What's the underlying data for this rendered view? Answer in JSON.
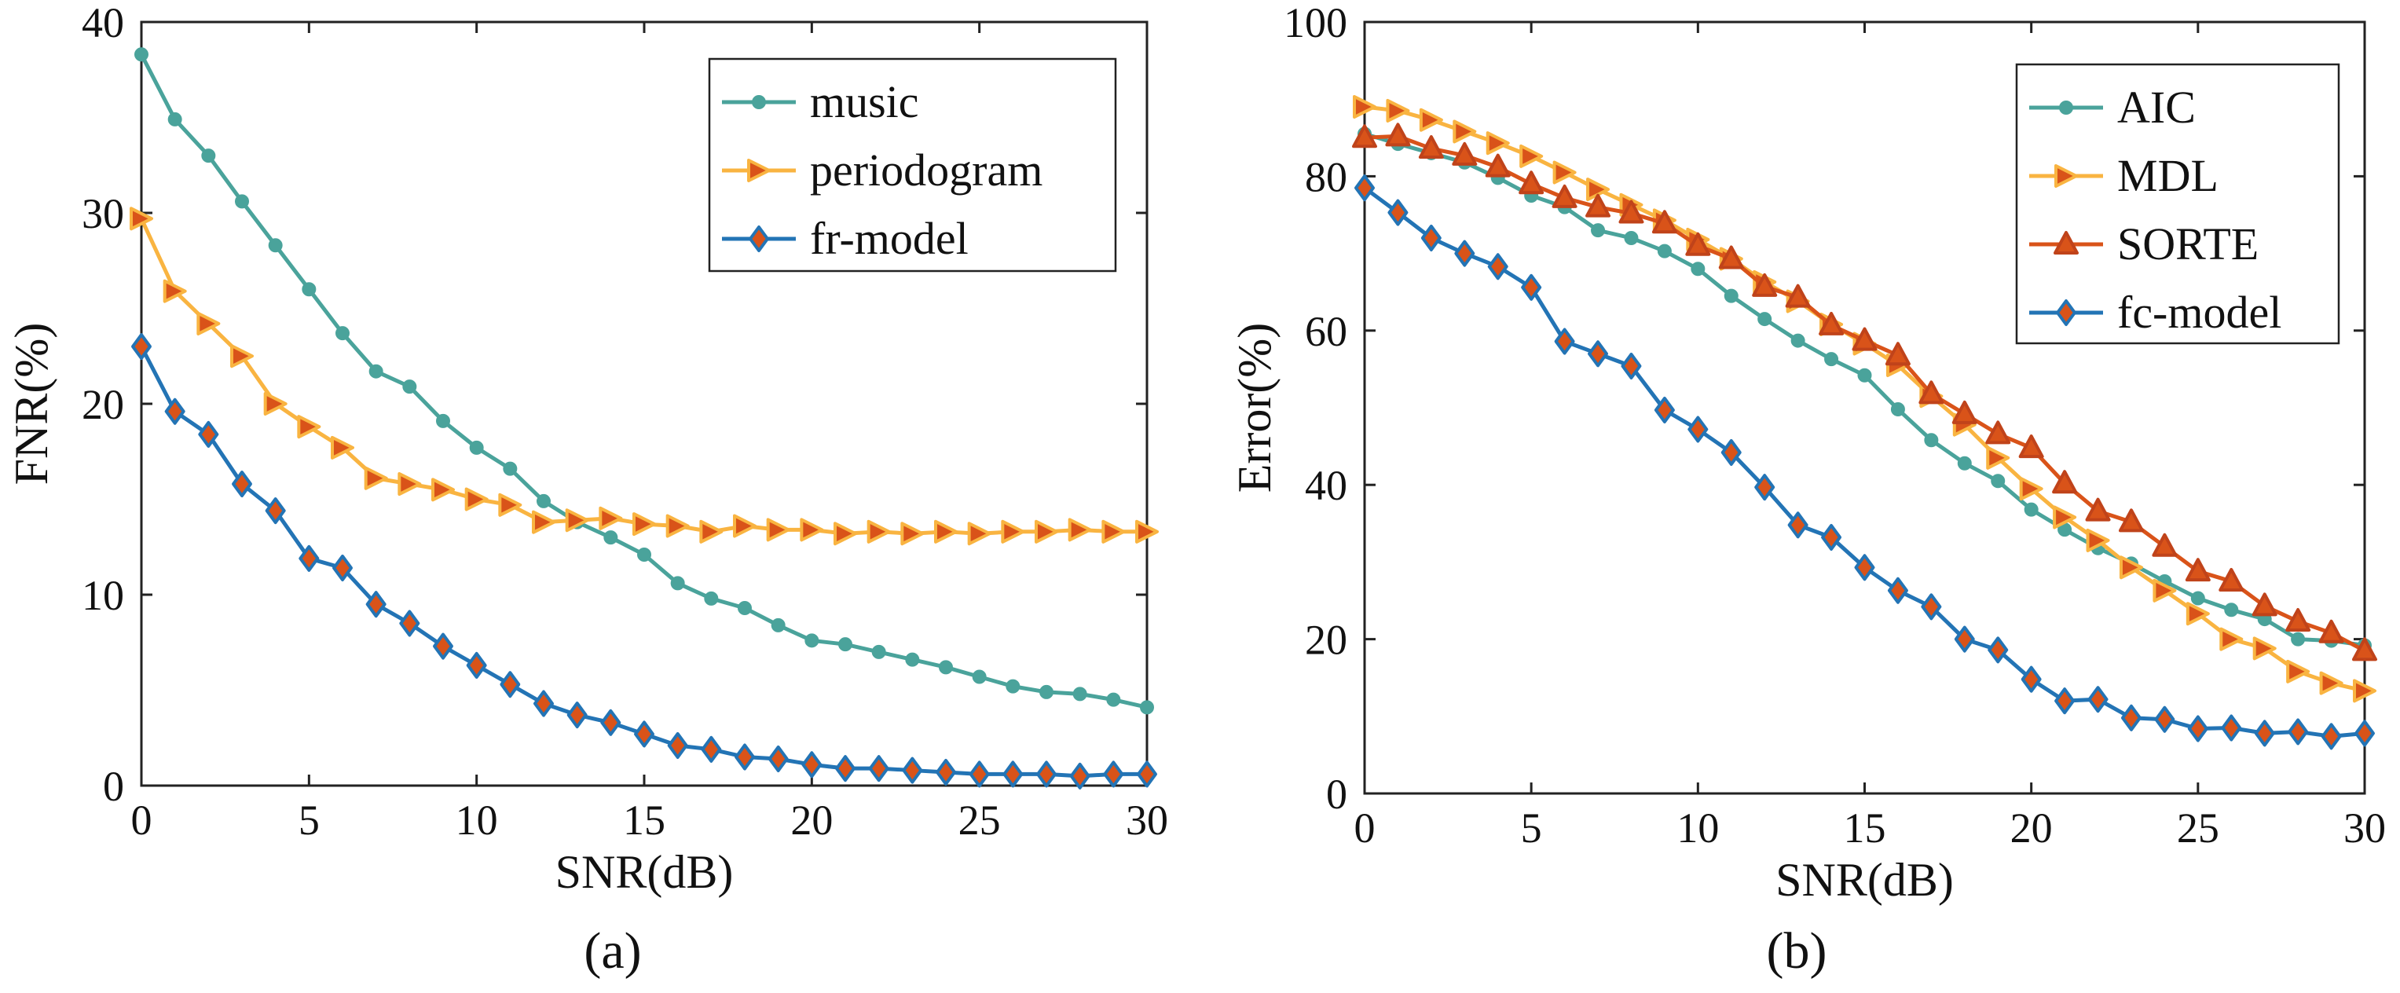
{
  "chart_data": [
    {
      "id": "a",
      "type": "line",
      "caption": "(a)",
      "xlabel": "SNR(dB)",
      "ylabel": "FNR(%)",
      "xlim": [
        0,
        30
      ],
      "ylim": [
        0,
        40
      ],
      "xticks": [
        0,
        5,
        10,
        15,
        20,
        25,
        30
      ],
      "yticks": [
        0,
        10,
        20,
        30,
        40
      ],
      "legend_position": "top-right",
      "x": [
        0,
        1,
        2,
        3,
        4,
        5,
        6,
        7,
        8,
        9,
        10,
        11,
        12,
        13,
        14,
        15,
        16,
        17,
        18,
        19,
        20,
        21,
        22,
        23,
        24,
        25,
        26,
        27,
        28,
        29,
        30
      ],
      "series": [
        {
          "name": "music",
          "color": "#4aa39b",
          "marker": "circle",
          "values": [
            38.3,
            34.9,
            33.0,
            30.6,
            28.3,
            26.0,
            23.7,
            21.7,
            20.9,
            19.1,
            17.7,
            16.6,
            14.9,
            13.8,
            13.0,
            12.1,
            10.6,
            9.8,
            9.3,
            8.4,
            7.6,
            7.4,
            7.0,
            6.6,
            6.2,
            5.7,
            5.2,
            4.9,
            4.8,
            4.5,
            4.1
          ]
        },
        {
          "name": "periodogram",
          "color": "#f9b441",
          "marker": "triangle-right",
          "values": [
            29.7,
            25.9,
            24.2,
            22.5,
            20.0,
            18.8,
            17.7,
            16.1,
            15.8,
            15.5,
            15.0,
            14.7,
            13.8,
            13.9,
            14.0,
            13.7,
            13.6,
            13.3,
            13.6,
            13.4,
            13.4,
            13.2,
            13.3,
            13.2,
            13.3,
            13.2,
            13.3,
            13.3,
            13.4,
            13.3,
            13.3
          ]
        },
        {
          "name": "fr-model",
          "color": "#2374b5",
          "marker": "diamond",
          "values": [
            23.0,
            19.6,
            18.4,
            15.8,
            14.4,
            11.9,
            11.4,
            9.5,
            8.5,
            7.3,
            6.3,
            5.3,
            4.3,
            3.7,
            3.3,
            2.7,
            2.1,
            1.9,
            1.5,
            1.4,
            1.1,
            0.9,
            0.9,
            0.8,
            0.7,
            0.6,
            0.6,
            0.6,
            0.5,
            0.6,
            0.6
          ]
        }
      ]
    },
    {
      "id": "b",
      "type": "line",
      "caption": "(b)",
      "xlabel": "SNR(dB)",
      "ylabel": "Error(%)",
      "xlim": [
        0,
        30
      ],
      "ylim": [
        0,
        100
      ],
      "xticks": [
        0,
        5,
        10,
        15,
        20,
        25,
        30
      ],
      "yticks": [
        0,
        20,
        40,
        60,
        80,
        100
      ],
      "legend_position": "top-right",
      "x": [
        0,
        1,
        2,
        3,
        4,
        5,
        6,
        7,
        8,
        9,
        10,
        11,
        12,
        13,
        14,
        15,
        16,
        17,
        18,
        19,
        20,
        21,
        22,
        23,
        24,
        25,
        26,
        27,
        28,
        29,
        30
      ],
      "series": [
        {
          "name": "AIC",
          "color": "#4aa39b",
          "marker": "circle",
          "values": [
            85.5,
            84.2,
            83.0,
            81.8,
            79.8,
            77.5,
            76.0,
            73.0,
            72.0,
            70.3,
            68.0,
            64.5,
            61.5,
            58.7,
            56.3,
            54.2,
            49.8,
            45.8,
            42.8,
            40.5,
            36.8,
            34.2,
            31.8,
            29.8,
            27.5,
            25.3,
            23.8,
            22.6,
            20.0,
            19.8,
            19.2
          ]
        },
        {
          "name": "MDL",
          "color": "#f9b441",
          "marker": "triangle-right",
          "values": [
            89.0,
            88.5,
            87.3,
            85.8,
            84.3,
            82.6,
            80.5,
            78.3,
            76.3,
            74.3,
            71.8,
            69.3,
            66.3,
            63.8,
            60.8,
            58.3,
            55.5,
            51.5,
            47.8,
            43.5,
            39.5,
            35.8,
            32.8,
            29.3,
            26.3,
            23.3,
            20.0,
            18.8,
            15.8,
            14.3,
            13.3
          ]
        },
        {
          "name": "SORTE",
          "color": "#d95319",
          "marker": "triangle-up",
          "values": [
            85.0,
            85.2,
            83.6,
            82.7,
            81.2,
            79.0,
            77.2,
            76.0,
            75.2,
            73.9,
            71.0,
            69.3,
            65.7,
            64.3,
            60.7,
            58.7,
            56.8,
            51.8,
            49.2,
            46.6,
            44.8,
            40.2,
            36.6,
            35.2,
            32.0,
            28.8,
            27.5,
            24.3,
            22.3,
            20.8,
            18.5
          ]
        },
        {
          "name": "fc-model",
          "color": "#2374b5",
          "marker": "diamond",
          "values": [
            78.5,
            75.3,
            72.0,
            70.0,
            68.3,
            65.6,
            58.6,
            57.0,
            55.4,
            49.7,
            47.2,
            44.2,
            39.7,
            34.8,
            33.2,
            29.3,
            26.3,
            24.2,
            20.0,
            18.6,
            14.8,
            12.0,
            12.2,
            9.8,
            9.6,
            8.4,
            8.5,
            7.8,
            8.0,
            7.4,
            7.8
          ]
        }
      ]
    }
  ]
}
